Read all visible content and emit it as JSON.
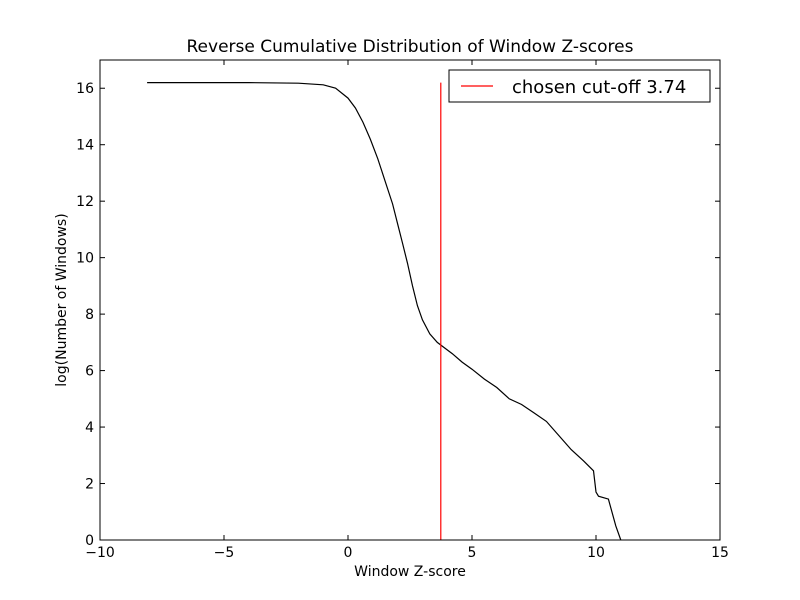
{
  "chart_data": {
    "type": "line",
    "title": "Reverse Cumulative Distribution of Window Z-scores",
    "xlabel": "Window Z-score",
    "ylabel": "log(Number of Windows)",
    "xlim": [
      -10,
      15
    ],
    "ylim": [
      0,
      17
    ],
    "xticks": [
      -10,
      -5,
      0,
      5,
      10,
      15
    ],
    "xtick_labels": [
      "−10",
      "−5",
      "0",
      "5",
      "10",
      "15"
    ],
    "yticks": [
      0,
      2,
      4,
      6,
      8,
      10,
      12,
      14,
      16
    ],
    "ytick_labels": [
      "0",
      "2",
      "4",
      "6",
      "8",
      "10",
      "12",
      "14",
      "16"
    ],
    "grid": false,
    "legend_position": "top-right",
    "series": [
      {
        "color": "#000000",
        "x": [
          -8.1,
          -6,
          -4,
          -2,
          -1,
          -0.5,
          0,
          0.3,
          0.6,
          0.9,
          1.2,
          1.5,
          1.8,
          2.0,
          2.2,
          2.4,
          2.6,
          2.8,
          3.0,
          3.3,
          3.6,
          3.9,
          4.2,
          4.6,
          5.0,
          5.5,
          6.0,
          6.5,
          7.0,
          7.5,
          8.0,
          8.5,
          9.0,
          9.5,
          9.9,
          10.0,
          10.1,
          10.5,
          10.8,
          11.0
        ],
        "y": [
          16.2,
          16.2,
          16.2,
          16.18,
          16.12,
          16.0,
          15.65,
          15.3,
          14.8,
          14.2,
          13.5,
          12.7,
          11.9,
          11.2,
          10.5,
          9.8,
          9.0,
          8.3,
          7.8,
          7.3,
          7.0,
          6.8,
          6.6,
          6.3,
          6.05,
          5.7,
          5.4,
          5.0,
          4.8,
          4.5,
          4.2,
          3.7,
          3.2,
          2.8,
          2.45,
          1.7,
          1.55,
          1.45,
          0.5,
          0.0
        ]
      },
      {
        "name": "chosen cut-off 3.74",
        "color": "#ff0000",
        "x": [
          3.74,
          3.74
        ],
        "y": [
          0,
          16.2
        ]
      }
    ]
  }
}
